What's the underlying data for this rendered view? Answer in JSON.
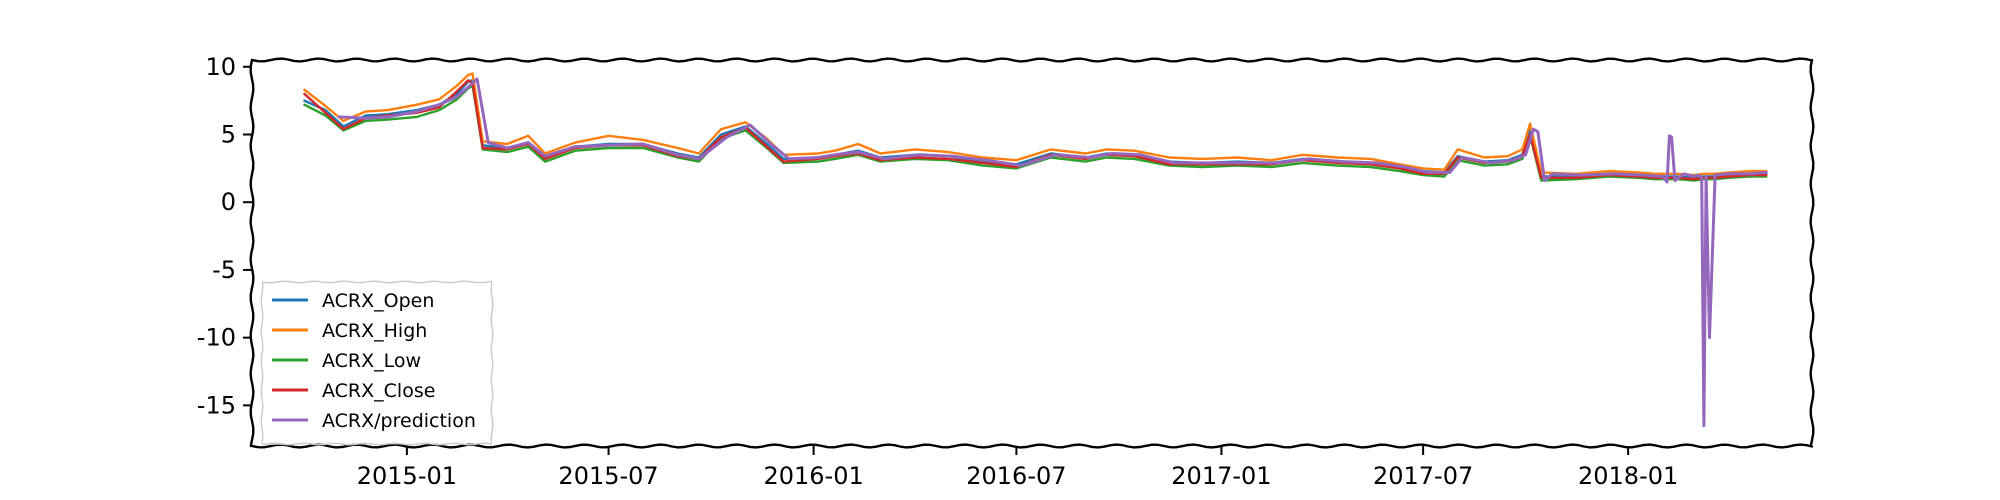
{
  "chart_data": {
    "type": "line",
    "title": "",
    "xlabel": "",
    "ylabel": "",
    "xlim": [
      "2014-08-15",
      "2018-06-15"
    ],
    "ylim": [
      -18,
      10.5
    ],
    "grid": false,
    "legend_position": "lower-left",
    "x_ticks": [
      "2015-01",
      "2015-07",
      "2016-01",
      "2016-07",
      "2017-01",
      "2017-07",
      "2018-01"
    ],
    "y_ticks": [
      10,
      5,
      0,
      -5,
      -10,
      -15
    ],
    "y_tick_labels": [
      "10",
      "5",
      "0",
      "-5",
      "-10",
      "-15"
    ],
    "series": [
      {
        "name": "ACRX_Open",
        "color": "#1f77b4",
        "x": [
          "2014-10-01",
          "2014-10-20",
          "2014-11-05",
          "2014-11-25",
          "2014-12-15",
          "2015-01-10",
          "2015-01-30",
          "2015-02-15",
          "2015-02-25",
          "2015-03-01",
          "2015-03-10",
          "2015-04-01",
          "2015-04-20",
          "2015-05-05",
          "2015-06-01",
          "2015-07-01",
          "2015-08-01",
          "2015-09-01",
          "2015-09-20",
          "2015-10-10",
          "2015-11-01",
          "2015-11-20",
          "2015-12-05",
          "2016-01-05",
          "2016-01-20",
          "2016-02-10",
          "2016-03-01",
          "2016-04-01",
          "2016-05-01",
          "2016-06-01",
          "2016-07-01",
          "2016-08-01",
          "2016-09-01",
          "2016-09-20",
          "2016-10-15",
          "2016-11-15",
          "2016-12-15",
          "2017-01-15",
          "2017-02-15",
          "2017-03-15",
          "2017-04-15",
          "2017-05-15",
          "2017-06-10",
          "2017-07-01",
          "2017-07-20",
          "2017-08-01",
          "2017-08-25",
          "2017-09-15",
          "2017-09-28",
          "2017-10-05",
          "2017-10-15",
          "2017-11-15",
          "2017-12-15",
          "2018-01-10",
          "2018-01-25",
          "2018-02-01",
          "2018-02-15",
          "2018-03-01",
          "2018-03-10",
          "2018-03-20",
          "2018-04-01",
          "2018-04-20",
          "2018-05-05"
        ],
        "values": [
          7.5,
          6.8,
          5.6,
          6.4,
          6.5,
          6.8,
          7.2,
          8.0,
          8.9,
          9.0,
          4.2,
          4.0,
          4.4,
          3.3,
          4.1,
          4.3,
          4.3,
          3.6,
          3.3,
          5.0,
          5.6,
          4.3,
          3.2,
          3.3,
          3.5,
          3.8,
          3.3,
          3.5,
          3.4,
          3.0,
          2.8,
          3.6,
          3.3,
          3.6,
          3.5,
          3.0,
          2.9,
          3.0,
          2.9,
          3.2,
          3.0,
          2.9,
          2.6,
          2.3,
          2.2,
          3.4,
          3.0,
          3.1,
          3.5,
          5.3,
          1.9,
          1.9,
          2.1,
          2.0,
          1.9,
          1.9,
          1.9,
          1.8,
          1.9,
          1.9,
          2.0,
          2.1,
          2.1
        ]
      },
      {
        "name": "ACRX_High",
        "color": "#ff7f0e",
        "x": [
          "2014-10-01",
          "2014-10-20",
          "2014-11-05",
          "2014-11-25",
          "2014-12-15",
          "2015-01-10",
          "2015-01-30",
          "2015-02-15",
          "2015-02-25",
          "2015-03-01",
          "2015-03-10",
          "2015-04-01",
          "2015-04-20",
          "2015-05-05",
          "2015-06-01",
          "2015-07-01",
          "2015-08-01",
          "2015-09-01",
          "2015-09-20",
          "2015-10-10",
          "2015-11-01",
          "2015-11-20",
          "2015-12-05",
          "2016-01-05",
          "2016-01-20",
          "2016-02-10",
          "2016-03-01",
          "2016-04-01",
          "2016-05-01",
          "2016-06-01",
          "2016-07-01",
          "2016-08-01",
          "2016-09-01",
          "2016-09-20",
          "2016-10-15",
          "2016-11-15",
          "2016-12-15",
          "2017-01-15",
          "2017-02-15",
          "2017-03-15",
          "2017-04-15",
          "2017-05-15",
          "2017-06-10",
          "2017-07-01",
          "2017-07-20",
          "2017-08-01",
          "2017-08-25",
          "2017-09-15",
          "2017-09-28",
          "2017-10-05",
          "2017-10-15",
          "2017-11-15",
          "2017-12-15",
          "2018-01-10",
          "2018-01-25",
          "2018-02-01",
          "2018-02-15",
          "2018-03-01",
          "2018-03-10",
          "2018-03-20",
          "2018-04-01",
          "2018-04-20",
          "2018-05-05"
        ],
        "values": [
          8.3,
          7.1,
          6.0,
          6.7,
          6.8,
          7.2,
          7.6,
          8.6,
          9.4,
          9.5,
          4.5,
          4.3,
          4.9,
          3.6,
          4.4,
          4.9,
          4.6,
          4.0,
          3.6,
          5.4,
          5.9,
          4.7,
          3.5,
          3.6,
          3.8,
          4.3,
          3.6,
          3.9,
          3.7,
          3.3,
          3.1,
          3.9,
          3.6,
          3.9,
          3.8,
          3.3,
          3.2,
          3.3,
          3.1,
          3.5,
          3.3,
          3.2,
          2.8,
          2.5,
          2.4,
          3.9,
          3.3,
          3.4,
          3.9,
          5.8,
          2.2,
          2.1,
          2.3,
          2.2,
          2.1,
          2.1,
          2.1,
          2.0,
          2.1,
          2.1,
          2.2,
          2.3,
          2.3
        ]
      },
      {
        "name": "ACRX_Low",
        "color": "#2ca02c",
        "x": [
          "2014-10-01",
          "2014-10-20",
          "2014-11-05",
          "2014-11-25",
          "2014-12-15",
          "2015-01-10",
          "2015-01-30",
          "2015-02-15",
          "2015-02-25",
          "2015-03-01",
          "2015-03-10",
          "2015-04-01",
          "2015-04-20",
          "2015-05-05",
          "2015-06-01",
          "2015-07-01",
          "2015-08-01",
          "2015-09-01",
          "2015-09-20",
          "2015-10-10",
          "2015-11-01",
          "2015-11-20",
          "2015-12-05",
          "2016-01-05",
          "2016-01-20",
          "2016-02-10",
          "2016-03-01",
          "2016-04-01",
          "2016-05-01",
          "2016-06-01",
          "2016-07-01",
          "2016-08-01",
          "2016-09-01",
          "2016-09-20",
          "2016-10-15",
          "2016-11-15",
          "2016-12-15",
          "2017-01-15",
          "2017-02-15",
          "2017-03-15",
          "2017-04-15",
          "2017-05-15",
          "2017-06-10",
          "2017-07-01",
          "2017-07-20",
          "2017-08-01",
          "2017-08-25",
          "2017-09-15",
          "2017-09-28",
          "2017-10-05",
          "2017-10-15",
          "2017-11-15",
          "2017-12-15",
          "2018-01-10",
          "2018-01-25",
          "2018-02-01",
          "2018-02-15",
          "2018-03-01",
          "2018-03-10",
          "2018-03-20",
          "2018-04-01",
          "2018-04-20",
          "2018-05-05"
        ],
        "values": [
          7.2,
          6.4,
          5.3,
          6.0,
          6.1,
          6.3,
          6.8,
          7.6,
          8.4,
          8.6,
          3.9,
          3.7,
          4.1,
          3.0,
          3.8,
          4.0,
          4.0,
          3.3,
          3.0,
          4.7,
          5.3,
          4.0,
          2.9,
          3.0,
          3.2,
          3.5,
          3.0,
          3.2,
          3.1,
          2.7,
          2.5,
          3.3,
          3.0,
          3.3,
          3.2,
          2.7,
          2.6,
          2.7,
          2.6,
          2.9,
          2.7,
          2.6,
          2.3,
          2.0,
          1.9,
          3.1,
          2.7,
          2.8,
          3.2,
          4.9,
          1.6,
          1.7,
          1.9,
          1.8,
          1.7,
          1.7,
          1.7,
          1.6,
          1.7,
          1.7,
          1.8,
          1.9,
          1.9
        ]
      },
      {
        "name": "ACRX_Close",
        "color": "#d62728",
        "x": [
          "2014-10-01",
          "2014-10-20",
          "2014-11-05",
          "2014-11-25",
          "2014-12-15",
          "2015-01-10",
          "2015-01-30",
          "2015-02-15",
          "2015-02-25",
          "2015-03-01",
          "2015-03-10",
          "2015-04-01",
          "2015-04-20",
          "2015-05-05",
          "2015-06-01",
          "2015-07-01",
          "2015-08-01",
          "2015-09-01",
          "2015-09-20",
          "2015-10-10",
          "2015-11-01",
          "2015-11-20",
          "2015-12-05",
          "2016-01-05",
          "2016-01-20",
          "2016-02-10",
          "2016-03-01",
          "2016-04-01",
          "2016-05-01",
          "2016-06-01",
          "2016-07-01",
          "2016-08-01",
          "2016-09-01",
          "2016-09-20",
          "2016-10-15",
          "2016-11-15",
          "2016-12-15",
          "2017-01-15",
          "2017-02-15",
          "2017-03-15",
          "2017-04-15",
          "2017-05-15",
          "2017-06-10",
          "2017-07-01",
          "2017-07-20",
          "2017-08-01",
          "2017-08-25",
          "2017-09-15",
          "2017-09-28",
          "2017-10-05",
          "2017-10-15",
          "2017-11-15",
          "2017-12-15",
          "2018-01-10",
          "2018-01-25",
          "2018-02-01",
          "2018-02-15",
          "2018-03-01",
          "2018-03-10",
          "2018-03-20",
          "2018-04-01",
          "2018-04-20",
          "2018-05-05"
        ],
        "values": [
          8.0,
          6.6,
          5.4,
          6.2,
          6.4,
          6.6,
          7.0,
          8.2,
          9.0,
          8.8,
          4.0,
          3.9,
          4.3,
          3.2,
          4.0,
          4.2,
          4.2,
          3.4,
          3.2,
          4.8,
          5.5,
          4.1,
          3.0,
          3.2,
          3.4,
          3.6,
          3.1,
          3.3,
          3.2,
          2.9,
          2.6,
          3.5,
          3.2,
          3.5,
          3.4,
          2.8,
          2.8,
          2.8,
          2.8,
          3.1,
          2.9,
          2.8,
          2.5,
          2.1,
          2.1,
          3.3,
          2.9,
          3.0,
          3.4,
          5.0,
          1.8,
          1.8,
          2.0,
          1.9,
          1.8,
          1.8,
          1.8,
          1.7,
          1.8,
          1.8,
          1.9,
          2.0,
          2.0
        ]
      },
      {
        "name": "ACRX/prediction",
        "color": "#9467bd",
        "x": [
          "2014-11-01",
          "2014-11-25",
          "2014-12-15",
          "2015-01-10",
          "2015-01-30",
          "2015-02-15",
          "2015-02-25",
          "2015-03-05",
          "2015-03-15",
          "2015-04-01",
          "2015-04-20",
          "2015-05-05",
          "2015-06-01",
          "2015-07-01",
          "2015-08-01",
          "2015-09-01",
          "2015-09-20",
          "2015-10-15",
          "2015-11-05",
          "2015-11-25",
          "2015-12-10",
          "2016-01-05",
          "2016-01-20",
          "2016-02-10",
          "2016-03-05",
          "2016-04-05",
          "2016-05-05",
          "2016-06-05",
          "2016-07-05",
          "2016-08-05",
          "2016-09-05",
          "2016-09-25",
          "2016-10-20",
          "2016-11-20",
          "2016-12-20",
          "2017-01-20",
          "2017-02-20",
          "2017-03-20",
          "2017-04-20",
          "2017-05-20",
          "2017-06-15",
          "2017-07-05",
          "2017-07-25",
          "2017-08-05",
          "2017-08-30",
          "2017-09-20",
          "2017-10-01",
          "2017-10-08",
          "2017-10-12",
          "2017-10-18",
          "2017-10-25",
          "2017-11-20",
          "2017-12-20",
          "2018-01-15",
          "2018-02-01",
          "2018-02-05",
          "2018-02-07",
          "2018-02-09",
          "2018-02-12",
          "2018-02-20",
          "2018-03-01",
          "2018-03-05",
          "2018-03-08",
          "2018-03-10",
          "2018-03-12",
          "2018-03-15",
          "2018-03-20",
          "2018-04-01",
          "2018-04-20",
          "2018-05-05"
        ],
        "values": [
          6.3,
          6.2,
          6.3,
          6.7,
          7.2,
          7.8,
          8.5,
          9.1,
          4.4,
          4.0,
          4.4,
          3.4,
          4.1,
          4.2,
          4.3,
          3.5,
          3.2,
          4.8,
          5.7,
          4.2,
          3.2,
          3.3,
          3.5,
          3.7,
          3.2,
          3.5,
          3.4,
          3.1,
          2.7,
          3.5,
          3.3,
          3.6,
          3.5,
          2.9,
          2.9,
          2.9,
          2.9,
          3.2,
          3.0,
          2.9,
          2.6,
          2.2,
          2.2,
          3.3,
          2.9,
          3.1,
          3.5,
          5.4,
          5.2,
          1.6,
          2.1,
          2.0,
          2.1,
          2.0,
          1.9,
          1.5,
          4.9,
          4.8,
          1.6,
          2.1,
          1.9,
          2.0,
          1.8,
          -16.5,
          1.9,
          -10.0,
          2.0,
          2.1,
          2.1,
          2.2
        ]
      }
    ]
  }
}
